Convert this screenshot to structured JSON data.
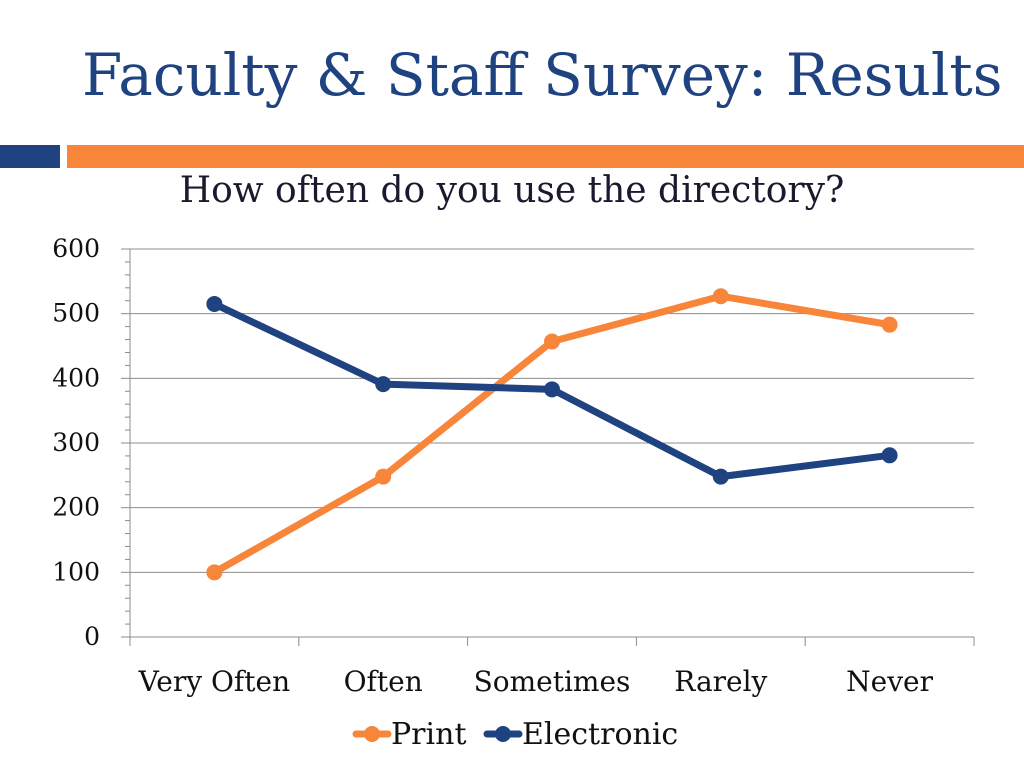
{
  "slide": {
    "title": "Faculty & Staff Survey: Results",
    "accent_colors": {
      "left_bar": "#1F4280",
      "right_bar": "#F7863B",
      "title": "#1F4280"
    }
  },
  "chart_data": {
    "type": "line",
    "title": "How often do you use the directory?",
    "xlabel": "",
    "ylabel": "",
    "categories": [
      "Very Often",
      "Often",
      "Sometimes",
      "Rarely",
      "Never"
    ],
    "ylim": [
      0,
      600
    ],
    "yticks": [
      0,
      100,
      200,
      300,
      400,
      500,
      600
    ],
    "grid": true,
    "legend_position": "bottom",
    "series": [
      {
        "name": "Print",
        "color": "#F7863B",
        "values": [
          100,
          248,
          457,
          527,
          483
        ]
      },
      {
        "name": "Electronic",
        "color": "#1F4280",
        "values": [
          515,
          391,
          383,
          248,
          281
        ]
      }
    ]
  }
}
